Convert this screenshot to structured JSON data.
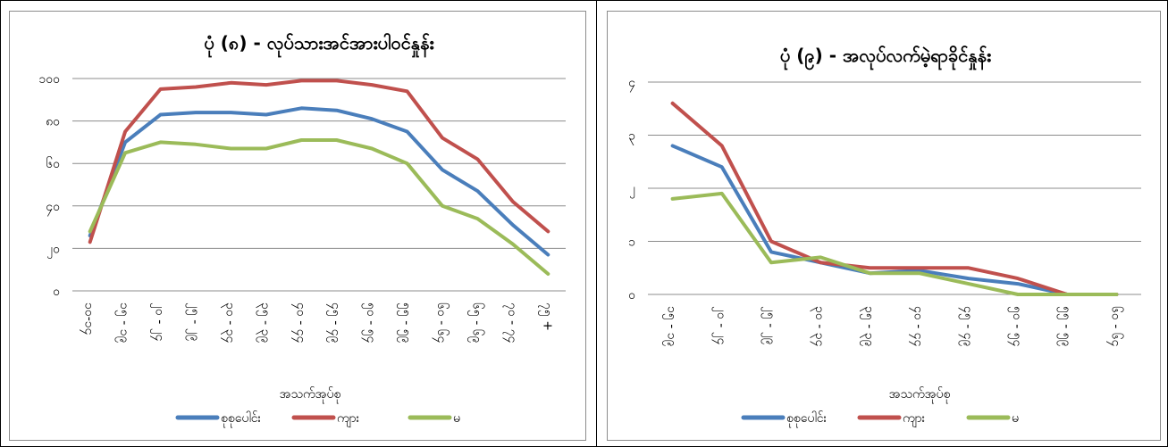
{
  "chart_data": [
    {
      "type": "line",
      "title": "ပုံ (၈) - လုပ်သားအင်အားပါဝင်နှုန်း",
      "xlabel": "အသက်အုပ်စု",
      "ylabel": "",
      "categories": [
        "၁၀-၁၄",
        "၁၅ - ၁၉",
        "၂၀ - ၂၄",
        "၂၅ - ၂၉",
        "၃၀ - ၃၄",
        "၃၅ - ၃၉",
        "၄၀ - ၄၄",
        "၄၅ - ၄၉",
        "၅၀ - ၅၄",
        "၅၅ - ၅၉",
        "၆၀ - ၆၄",
        "၆၅ - ၆၉",
        "၇၀ - ၇၄",
        "၇၅ +"
      ],
      "ylim": [
        0,
        100
      ],
      "yticks": [
        0,
        20,
        40,
        60,
        80,
        100
      ],
      "ytick_labels": [
        "၀",
        "၂၀",
        "၄၀",
        "၆၀",
        "၈၀",
        "၁၀၀"
      ],
      "grid": true,
      "legend": "bottom",
      "series": [
        {
          "name": "စုစုပေါင်း",
          "color": "#4a7ebb",
          "values": [
            26,
            70,
            83,
            84,
            84,
            83,
            86,
            85,
            81,
            75,
            57,
            47,
            31,
            17
          ]
        },
        {
          "name": "ကျား",
          "color": "#c0504d",
          "values": [
            23,
            75,
            95,
            96,
            98,
            97,
            99,
            99,
            97,
            94,
            72,
            62,
            42,
            28
          ]
        },
        {
          "name": "မ",
          "color": "#9bbb59",
          "values": [
            28,
            65,
            70,
            69,
            67,
            67,
            71,
            71,
            67,
            60,
            40,
            34,
            22,
            8
          ]
        }
      ]
    },
    {
      "type": "line",
      "title": "ပုံ (၉) - အလုပ်လက်မဲ့ရာခိုင်နှုန်း",
      "xlabel": "အသက်အုပ်စု",
      "ylabel": "",
      "categories": [
        "၁၅ - ၁၉",
        "၂၀ - ၂၄",
        "၂၅ - ၂၉",
        "၃၀ - ၃၄",
        "၃၅ - ၃၉",
        "၄၀ - ၄၄",
        "၄၅ - ၄၉",
        "၅၀ - ၅၄",
        "၅၅ - ၅၉",
        "၆၀ - ၆၄"
      ],
      "ylim": [
        0,
        4
      ],
      "yticks": [
        0,
        1,
        2,
        3,
        4
      ],
      "ytick_labels": [
        "၀",
        "၁",
        "၂",
        "၃",
        "၄"
      ],
      "grid": true,
      "legend": "bottom",
      "series": [
        {
          "name": "စုစုပေါင်း",
          "color": "#4a7ebb",
          "values": [
            2.8,
            2.4,
            0.8,
            0.6,
            0.4,
            0.45,
            0.3,
            0.2,
            0.0,
            0.0
          ]
        },
        {
          "name": "ကျား",
          "color": "#c0504d",
          "values": [
            3.6,
            2.8,
            1.0,
            0.6,
            0.5,
            0.5,
            0.5,
            0.3,
            0.0,
            0.0
          ]
        },
        {
          "name": "မ",
          "color": "#9bbb59",
          "values": [
            1.8,
            1.9,
            0.6,
            0.7,
            0.4,
            0.4,
            0.2,
            0.0,
            0.0,
            0.0
          ]
        }
      ]
    }
  ]
}
